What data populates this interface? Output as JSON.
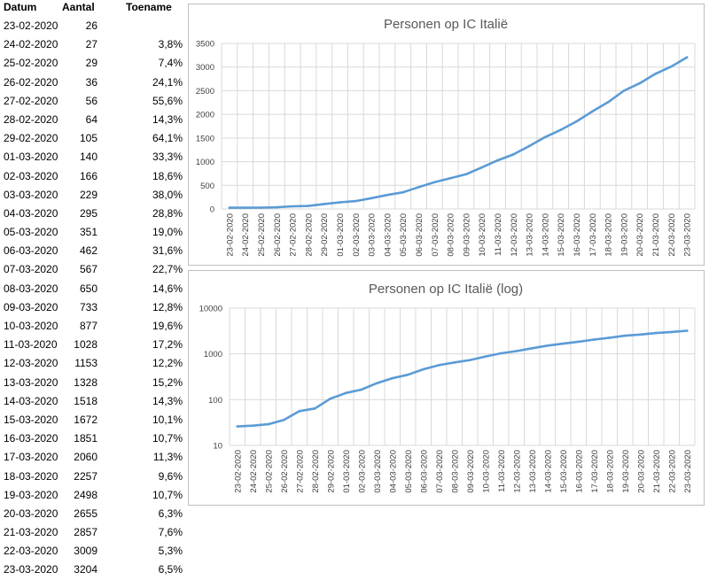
{
  "table": {
    "headers": {
      "date": "Datum",
      "count": "Aantal",
      "growth": "Toename"
    },
    "rows": [
      {
        "date": "23-02-2020",
        "count": "26",
        "growth": ""
      },
      {
        "date": "24-02-2020",
        "count": "27",
        "growth": "3,8%"
      },
      {
        "date": "25-02-2020",
        "count": "29",
        "growth": "7,4%"
      },
      {
        "date": "26-02-2020",
        "count": "36",
        "growth": "24,1%"
      },
      {
        "date": "27-02-2020",
        "count": "56",
        "growth": "55,6%"
      },
      {
        "date": "28-02-2020",
        "count": "64",
        "growth": "14,3%"
      },
      {
        "date": "29-02-2020",
        "count": "105",
        "growth": "64,1%"
      },
      {
        "date": "01-03-2020",
        "count": "140",
        "growth": "33,3%"
      },
      {
        "date": "02-03-2020",
        "count": "166",
        "growth": "18,6%"
      },
      {
        "date": "03-03-2020",
        "count": "229",
        "growth": "38,0%"
      },
      {
        "date": "04-03-2020",
        "count": "295",
        "growth": "28,8%"
      },
      {
        "date": "05-03-2020",
        "count": "351",
        "growth": "19,0%"
      },
      {
        "date": "06-03-2020",
        "count": "462",
        "growth": "31,6%"
      },
      {
        "date": "07-03-2020",
        "count": "567",
        "growth": "22,7%"
      },
      {
        "date": "08-03-2020",
        "count": "650",
        "growth": "14,6%"
      },
      {
        "date": "09-03-2020",
        "count": "733",
        "growth": "12,8%"
      },
      {
        "date": "10-03-2020",
        "count": "877",
        "growth": "19,6%"
      },
      {
        "date": "11-03-2020",
        "count": "1028",
        "growth": "17,2%"
      },
      {
        "date": "12-03-2020",
        "count": "1153",
        "growth": "12,2%"
      },
      {
        "date": "13-03-2020",
        "count": "1328",
        "growth": "15,2%"
      },
      {
        "date": "14-03-2020",
        "count": "1518",
        "growth": "14,3%"
      },
      {
        "date": "15-03-2020",
        "count": "1672",
        "growth": "10,1%"
      },
      {
        "date": "16-03-2020",
        "count": "1851",
        "growth": "10,7%"
      },
      {
        "date": "17-03-2020",
        "count": "2060",
        "growth": "11,3%"
      },
      {
        "date": "18-03-2020",
        "count": "2257",
        "growth": "9,6%"
      },
      {
        "date": "19-03-2020",
        "count": "2498",
        "growth": "10,7%"
      },
      {
        "date": "20-03-2020",
        "count": "2655",
        "growth": "6,3%"
      },
      {
        "date": "21-03-2020",
        "count": "2857",
        "growth": "7,6%"
      },
      {
        "date": "22-03-2020",
        "count": "3009",
        "growth": "5,3%"
      },
      {
        "date": "23-03-2020",
        "count": "3204",
        "growth": "6,5%"
      }
    ]
  },
  "chart_data": [
    {
      "type": "line",
      "title": "Personen op IC Italië",
      "xlabel": "",
      "ylabel": "",
      "ylim": [
        0,
        3500
      ],
      "yticks": [
        0,
        500,
        1000,
        1500,
        2000,
        2500,
        3000,
        3500
      ],
      "grid": true,
      "log_scale": false,
      "line_color": "#5b9bd5",
      "x": [
        "23-02-2020",
        "24-02-2020",
        "25-02-2020",
        "26-02-2020",
        "27-02-2020",
        "28-02-2020",
        "29-02-2020",
        "01-03-2020",
        "02-03-2020",
        "03-03-2020",
        "04-03-2020",
        "05-03-2020",
        "06-03-2020",
        "07-03-2020",
        "08-03-2020",
        "09-03-2020",
        "10-03-2020",
        "11-03-2020",
        "12-03-2020",
        "13-03-2020",
        "14-03-2020",
        "15-03-2020",
        "16-03-2020",
        "17-03-2020",
        "18-03-2020",
        "19-03-2020",
        "20-03-2020",
        "21-03-2020",
        "22-03-2020",
        "23-03-2020"
      ],
      "values": [
        26,
        27,
        29,
        36,
        56,
        64,
        105,
        140,
        166,
        229,
        295,
        351,
        462,
        567,
        650,
        733,
        877,
        1028,
        1153,
        1328,
        1518,
        1672,
        1851,
        2060,
        2257,
        2498,
        2655,
        2857,
        3009,
        3204
      ]
    },
    {
      "type": "line",
      "title": "Personen op IC Italië (log)",
      "xlabel": "",
      "ylabel": "",
      "ylim": [
        10,
        10000
      ],
      "yticks": [
        10,
        100,
        1000,
        10000
      ],
      "grid": true,
      "log_scale": true,
      "line_color": "#5b9bd5",
      "x": [
        "23-02-2020",
        "24-02-2020",
        "25-02-2020",
        "26-02-2020",
        "27-02-2020",
        "28-02-2020",
        "29-02-2020",
        "01-03-2020",
        "02-03-2020",
        "03-03-2020",
        "04-03-2020",
        "05-03-2020",
        "06-03-2020",
        "07-03-2020",
        "08-03-2020",
        "09-03-2020",
        "10-03-2020",
        "11-03-2020",
        "12-03-2020",
        "13-03-2020",
        "14-03-2020",
        "15-03-2020",
        "16-03-2020",
        "17-03-2020",
        "18-03-2020",
        "19-03-2020",
        "20-03-2020",
        "21-03-2020",
        "22-03-2020",
        "23-03-2020"
      ],
      "values": [
        26,
        27,
        29,
        36,
        56,
        64,
        105,
        140,
        166,
        229,
        295,
        351,
        462,
        567,
        650,
        733,
        877,
        1028,
        1153,
        1328,
        1518,
        1672,
        1851,
        2060,
        2257,
        2498,
        2655,
        2857,
        3009,
        3204
      ]
    }
  ]
}
